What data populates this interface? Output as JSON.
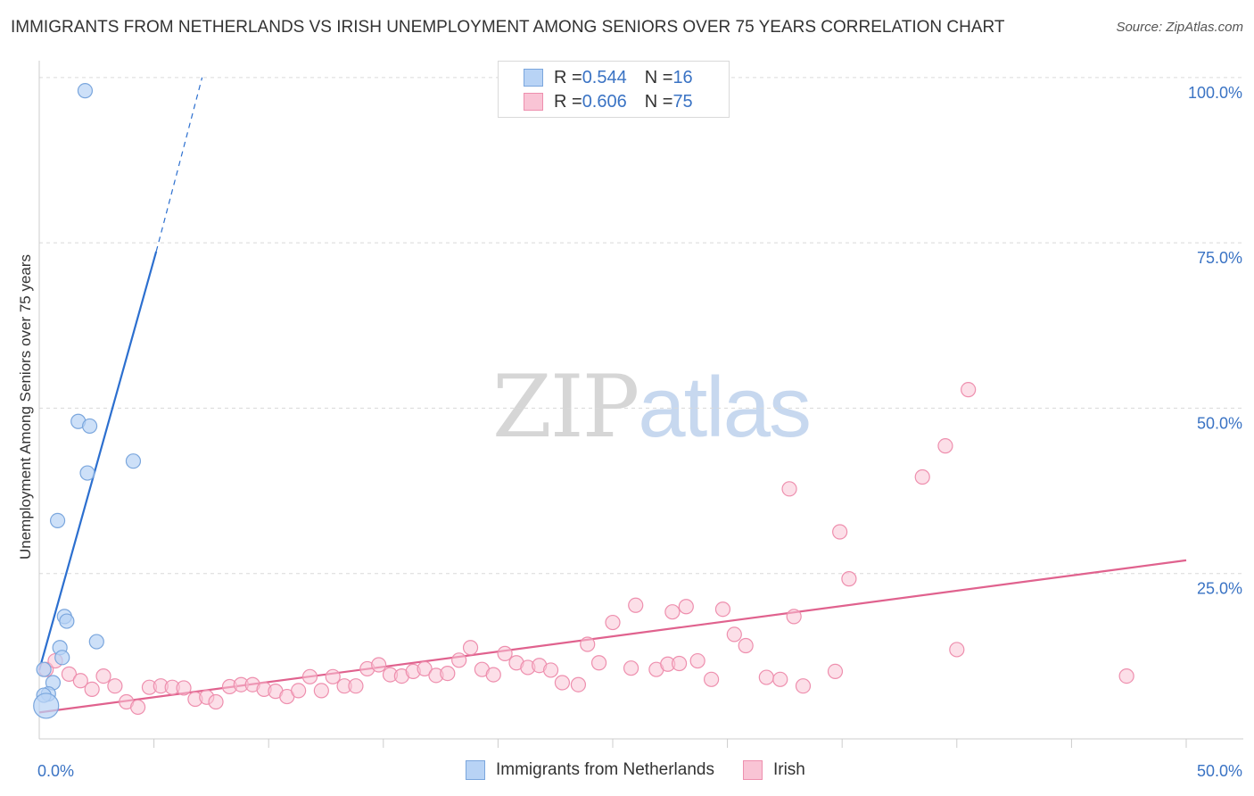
{
  "title": "IMMIGRANTS FROM NETHERLANDS VS IRISH UNEMPLOYMENT AMONG SENIORS OVER 75 YEARS CORRELATION CHART",
  "source": "Source: ZipAtlas.com",
  "watermark": {
    "zip": "ZIP",
    "atlas": "atlas"
  },
  "legend": {
    "series1": {
      "r_label": "R = ",
      "r_value": "0.544",
      "n_label": "N = ",
      "n_value": "16"
    },
    "series2": {
      "r_label": "R = ",
      "r_value": "0.606",
      "n_label": "N = ",
      "n_value": "75"
    }
  },
  "bottom_legend": {
    "series1": "Immigrants from Netherlands",
    "series2": "Irish"
  },
  "colors": {
    "blue_fill": "#b8d3f5",
    "blue_stroke": "#7aa6dd",
    "blue_line": "#2c6fcf",
    "pink_fill": "#f9c4d5",
    "pink_stroke": "#ee8fae",
    "pink_line": "#e0628e",
    "axis_label": "#3a73c4",
    "grid": "#d9d9d9"
  },
  "chart_data": {
    "type": "scatter",
    "title": "IMMIGRANTS FROM NETHERLANDS VS IRISH UNEMPLOYMENT AMONG SENIORS OVER 75 YEARS CORRELATION CHART",
    "xlabel": "",
    "ylabel": "Unemployment Among Seniors over 75 years",
    "xlim": [
      0,
      50
    ],
    "ylim": [
      0,
      102
    ],
    "x_tick_labels": [
      "0.0%",
      "50.0%"
    ],
    "y_ticks": [
      25,
      50,
      75,
      100
    ],
    "y_tick_labels": [
      "25.0%",
      "50.0%",
      "75.0%",
      "100.0%"
    ],
    "series": [
      {
        "name": "Immigrants from Netherlands",
        "R": 0.544,
        "N": 16,
        "points": [
          {
            "x": 2.0,
            "y": 98.0
          },
          {
            "x": 1.7,
            "y": 48.0
          },
          {
            "x": 2.2,
            "y": 47.3
          },
          {
            "x": 2.1,
            "y": 40.2
          },
          {
            "x": 4.1,
            "y": 42.0
          },
          {
            "x": 0.8,
            "y": 33.0
          },
          {
            "x": 1.1,
            "y": 18.5
          },
          {
            "x": 1.2,
            "y": 17.8
          },
          {
            "x": 2.5,
            "y": 14.7
          },
          {
            "x": 0.9,
            "y": 13.8
          },
          {
            "x": 1.0,
            "y": 12.3
          },
          {
            "x": 0.2,
            "y": 10.5
          },
          {
            "x": 0.6,
            "y": 8.5
          },
          {
            "x": 0.4,
            "y": 6.8
          },
          {
            "x": 0.2,
            "y": 6.6
          },
          {
            "x": 0.3,
            "y": 5.0,
            "size": "large"
          }
        ],
        "trend": {
          "x0": 0.0,
          "y0": 10.4,
          "x1": 5.1,
          "y1": 73.7,
          "dashed_to": {
            "x": 7.1,
            "y": 100.0
          }
        }
      },
      {
        "name": "Irish",
        "R": 0.606,
        "N": 75,
        "points": [
          {
            "x": 0.3,
            "y": 10.5
          },
          {
            "x": 0.7,
            "y": 11.8
          },
          {
            "x": 1.3,
            "y": 9.8
          },
          {
            "x": 1.8,
            "y": 8.8
          },
          {
            "x": 2.3,
            "y": 7.5
          },
          {
            "x": 2.8,
            "y": 9.5
          },
          {
            "x": 3.3,
            "y": 8.0
          },
          {
            "x": 3.8,
            "y": 5.6
          },
          {
            "x": 4.3,
            "y": 4.8
          },
          {
            "x": 4.8,
            "y": 7.8
          },
          {
            "x": 5.3,
            "y": 8.0
          },
          {
            "x": 5.8,
            "y": 7.8
          },
          {
            "x": 6.3,
            "y": 7.7
          },
          {
            "x": 6.8,
            "y": 6.0
          },
          {
            "x": 7.3,
            "y": 6.3
          },
          {
            "x": 7.7,
            "y": 5.6
          },
          {
            "x": 8.3,
            "y": 7.9
          },
          {
            "x": 8.8,
            "y": 8.2
          },
          {
            "x": 9.3,
            "y": 8.2
          },
          {
            "x": 9.8,
            "y": 7.5
          },
          {
            "x": 10.3,
            "y": 7.2
          },
          {
            "x": 10.8,
            "y": 6.4
          },
          {
            "x": 11.3,
            "y": 7.3
          },
          {
            "x": 11.8,
            "y": 9.4
          },
          {
            "x": 12.3,
            "y": 7.3
          },
          {
            "x": 12.8,
            "y": 9.4
          },
          {
            "x": 13.3,
            "y": 8.0
          },
          {
            "x": 13.8,
            "y": 8.0
          },
          {
            "x": 14.3,
            "y": 10.6
          },
          {
            "x": 14.8,
            "y": 11.2
          },
          {
            "x": 15.3,
            "y": 9.7
          },
          {
            "x": 15.8,
            "y": 9.5
          },
          {
            "x": 16.3,
            "y": 10.2
          },
          {
            "x": 16.8,
            "y": 10.6
          },
          {
            "x": 17.3,
            "y": 9.6
          },
          {
            "x": 17.8,
            "y": 9.9
          },
          {
            "x": 18.3,
            "y": 11.9
          },
          {
            "x": 18.8,
            "y": 13.8
          },
          {
            "x": 19.3,
            "y": 10.5
          },
          {
            "x": 19.8,
            "y": 9.7
          },
          {
            "x": 20.3,
            "y": 12.9
          },
          {
            "x": 20.8,
            "y": 11.5
          },
          {
            "x": 21.3,
            "y": 10.8
          },
          {
            "x": 21.8,
            "y": 11.1
          },
          {
            "x": 22.3,
            "y": 10.4
          },
          {
            "x": 22.8,
            "y": 8.5
          },
          {
            "x": 23.5,
            "y": 8.2
          },
          {
            "x": 23.9,
            "y": 14.3
          },
          {
            "x": 24.4,
            "y": 11.5
          },
          {
            "x": 25.0,
            "y": 17.6
          },
          {
            "x": 25.8,
            "y": 10.7
          },
          {
            "x": 26.0,
            "y": 20.2
          },
          {
            "x": 26.9,
            "y": 10.5
          },
          {
            "x": 27.4,
            "y": 11.3
          },
          {
            "x": 27.6,
            "y": 19.2
          },
          {
            "x": 27.9,
            "y": 11.4
          },
          {
            "x": 28.2,
            "y": 20.0
          },
          {
            "x": 28.7,
            "y": 11.8
          },
          {
            "x": 29.3,
            "y": 9.0
          },
          {
            "x": 29.8,
            "y": 19.6
          },
          {
            "x": 30.3,
            "y": 15.8
          },
          {
            "x": 30.8,
            "y": 14.1
          },
          {
            "x": 31.7,
            "y": 9.3
          },
          {
            "x": 32.3,
            "y": 9.0
          },
          {
            "x": 32.7,
            "y": 37.8
          },
          {
            "x": 32.9,
            "y": 18.5
          },
          {
            "x": 33.3,
            "y": 8.0
          },
          {
            "x": 34.7,
            "y": 10.2
          },
          {
            "x": 34.9,
            "y": 31.3
          },
          {
            "x": 35.3,
            "y": 24.2
          },
          {
            "x": 38.5,
            "y": 39.6
          },
          {
            "x": 39.5,
            "y": 44.3
          },
          {
            "x": 40.0,
            "y": 13.5
          },
          {
            "x": 40.5,
            "y": 52.8
          },
          {
            "x": 47.4,
            "y": 9.5
          }
        ],
        "trend": {
          "x0": 0.0,
          "y0": 4.0,
          "x1": 50.0,
          "y1": 27.0
        }
      }
    ]
  }
}
